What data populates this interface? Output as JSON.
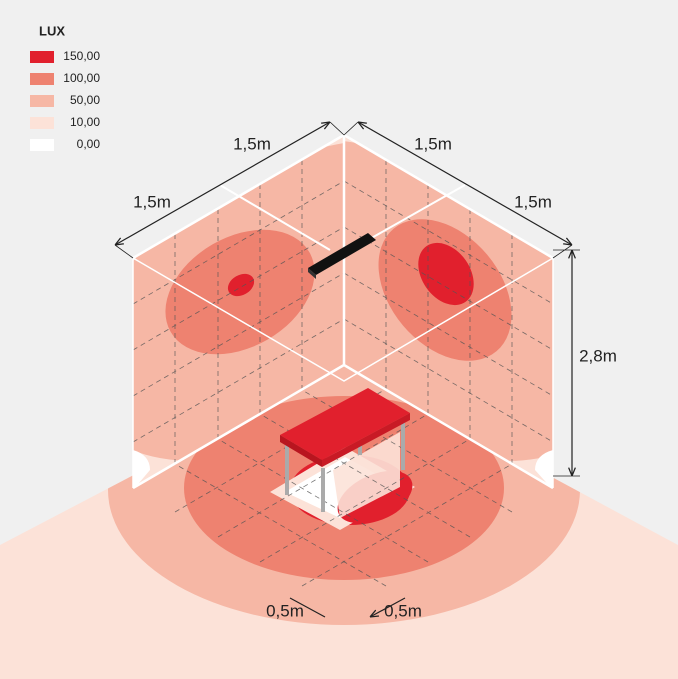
{
  "legend": {
    "title": "LUX",
    "items": [
      {
        "label": "150,00",
        "color": "#e1202d"
      },
      {
        "label": "100,00",
        "color": "#ee8270"
      },
      {
        "label": "50,00",
        "color": "#f6b7a5"
      },
      {
        "label": "10,00",
        "color": "#fce2d8"
      },
      {
        "label": "0,00",
        "color": "#ffffff"
      }
    ]
  },
  "dimensions": {
    "labels": [
      "1,5m",
      "1,5m",
      "1,5m",
      "1,5m",
      "2,8m",
      "0,5m",
      "0,5m"
    ]
  }
}
